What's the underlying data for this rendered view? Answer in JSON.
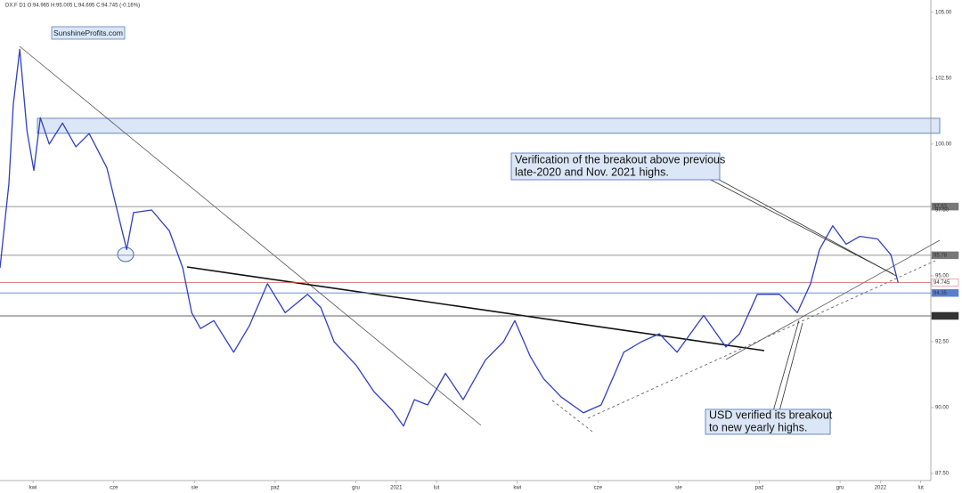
{
  "chart_data": {
    "type": "line",
    "header": "DX.F  D1  O:94.965  H:95.005  L:94.695  C:94.745  (-0.16%)",
    "watermark": "SunshineProfits.com",
    "annotations": [
      {
        "lines": [
          "Verification of the breakout above previous",
          "late-2020 and Nov. 2021 highs."
        ]
      },
      {
        "lines": [
          "USD verified its breakout",
          "to new yearly highs."
        ]
      }
    ],
    "x": [
      0.18,
      0.4,
      0.51,
      0.67,
      0.85,
      1.02,
      1.18,
      1.4,
      1.73,
      2.06,
      2.39,
      2.83,
      3.16,
      3.32,
      3.49,
      3.94,
      4.38,
      4.71,
      4.93,
      5.15,
      5.48,
      5.97,
      6.36,
      6.81,
      7.25,
      7.8,
      8.13,
      8.46,
      9.01,
      9.45,
      9.9,
      10.18,
      10.45,
      10.78,
      11.22,
      11.66,
      12.21,
      12.66,
      12.94,
      13.32,
      13.65,
      14.09,
      14.64,
      15.08,
      15.42,
      15.64,
      16.08,
      16.52,
      16.96,
      17.62,
      18.17,
      18.51,
      18.95,
      19.5,
      19.94,
      20.27,
      20.49,
      20.82,
      21.15,
      21.49,
      21.93,
      22.26,
      22.44
    ],
    "series": [
      {
        "color": "#2f3fc4",
        "values": [
          95.3,
          98.5,
          101.5,
          103.6,
          100.5,
          99.0,
          101.0,
          100.0,
          100.8,
          99.9,
          100.4,
          99.1,
          97.0,
          96.0,
          97.4,
          97.5,
          96.7,
          95.3,
          93.6,
          93.0,
          93.3,
          92.1,
          93.1,
          94.7,
          93.6,
          94.3,
          93.8,
          92.5,
          91.6,
          90.6,
          89.9,
          89.3,
          90.3,
          90.1,
          91.3,
          90.3,
          91.8,
          92.5,
          93.3,
          91.95,
          91.1,
          90.4,
          89.8,
          90.1,
          91.3,
          92.1,
          92.5,
          92.8,
          92.1,
          93.5,
          92.3,
          92.8,
          94.3,
          94.3,
          93.6,
          94.7,
          96.0,
          96.9,
          96.2,
          96.5,
          96.4,
          95.8,
          94.745
        ]
      }
    ],
    "levels": [
      {
        "value": 97.63,
        "color": "#777777"
      },
      {
        "value": 95.78,
        "color": "#777777"
      },
      {
        "value": 94.745,
        "color": "#d06060"
      },
      {
        "value": 94.35,
        "color": "#5a7fd0"
      },
      {
        "value": 93.48,
        "color": "#333333"
      }
    ],
    "band": {
      "from": 100.41,
      "to": 100.98,
      "color": "#dbe7f7"
    },
    "xlim": [
      0.18,
      23.25
    ],
    "ylim": [
      87.23,
      105.47
    ],
    "yticks": [
      {
        "value": 105,
        "label": "105.00"
      },
      {
        "value": 102.5,
        "label": "102.50"
      },
      {
        "value": 100,
        "label": "100.00"
      },
      {
        "value": 97.5,
        "label": "97.50"
      },
      {
        "value": 95,
        "label": "95.00"
      },
      {
        "value": 92.5,
        "label": "92.50"
      },
      {
        "value": 90,
        "label": "90.00"
      },
      {
        "value": 87.5,
        "label": "87.50"
      }
    ],
    "xticks": [
      {
        "value": 1,
        "label": "kwi"
      },
      {
        "value": 3,
        "label": "cze"
      },
      {
        "value": 5,
        "label": "sie"
      },
      {
        "value": 7,
        "label": "paź"
      },
      {
        "value": 9,
        "label": "gru"
      },
      {
        "value": 10,
        "label": "2021"
      },
      {
        "value": 11,
        "label": "lut"
      },
      {
        "value": 13,
        "label": "kwi"
      },
      {
        "value": 15,
        "label": "cze"
      },
      {
        "value": 17,
        "label": "sie"
      },
      {
        "value": 19,
        "label": "paź"
      },
      {
        "value": 21,
        "label": "gru"
      },
      {
        "value": 22,
        "label": "2022"
      },
      {
        "value": 23,
        "label": "lut"
      }
    ]
  }
}
